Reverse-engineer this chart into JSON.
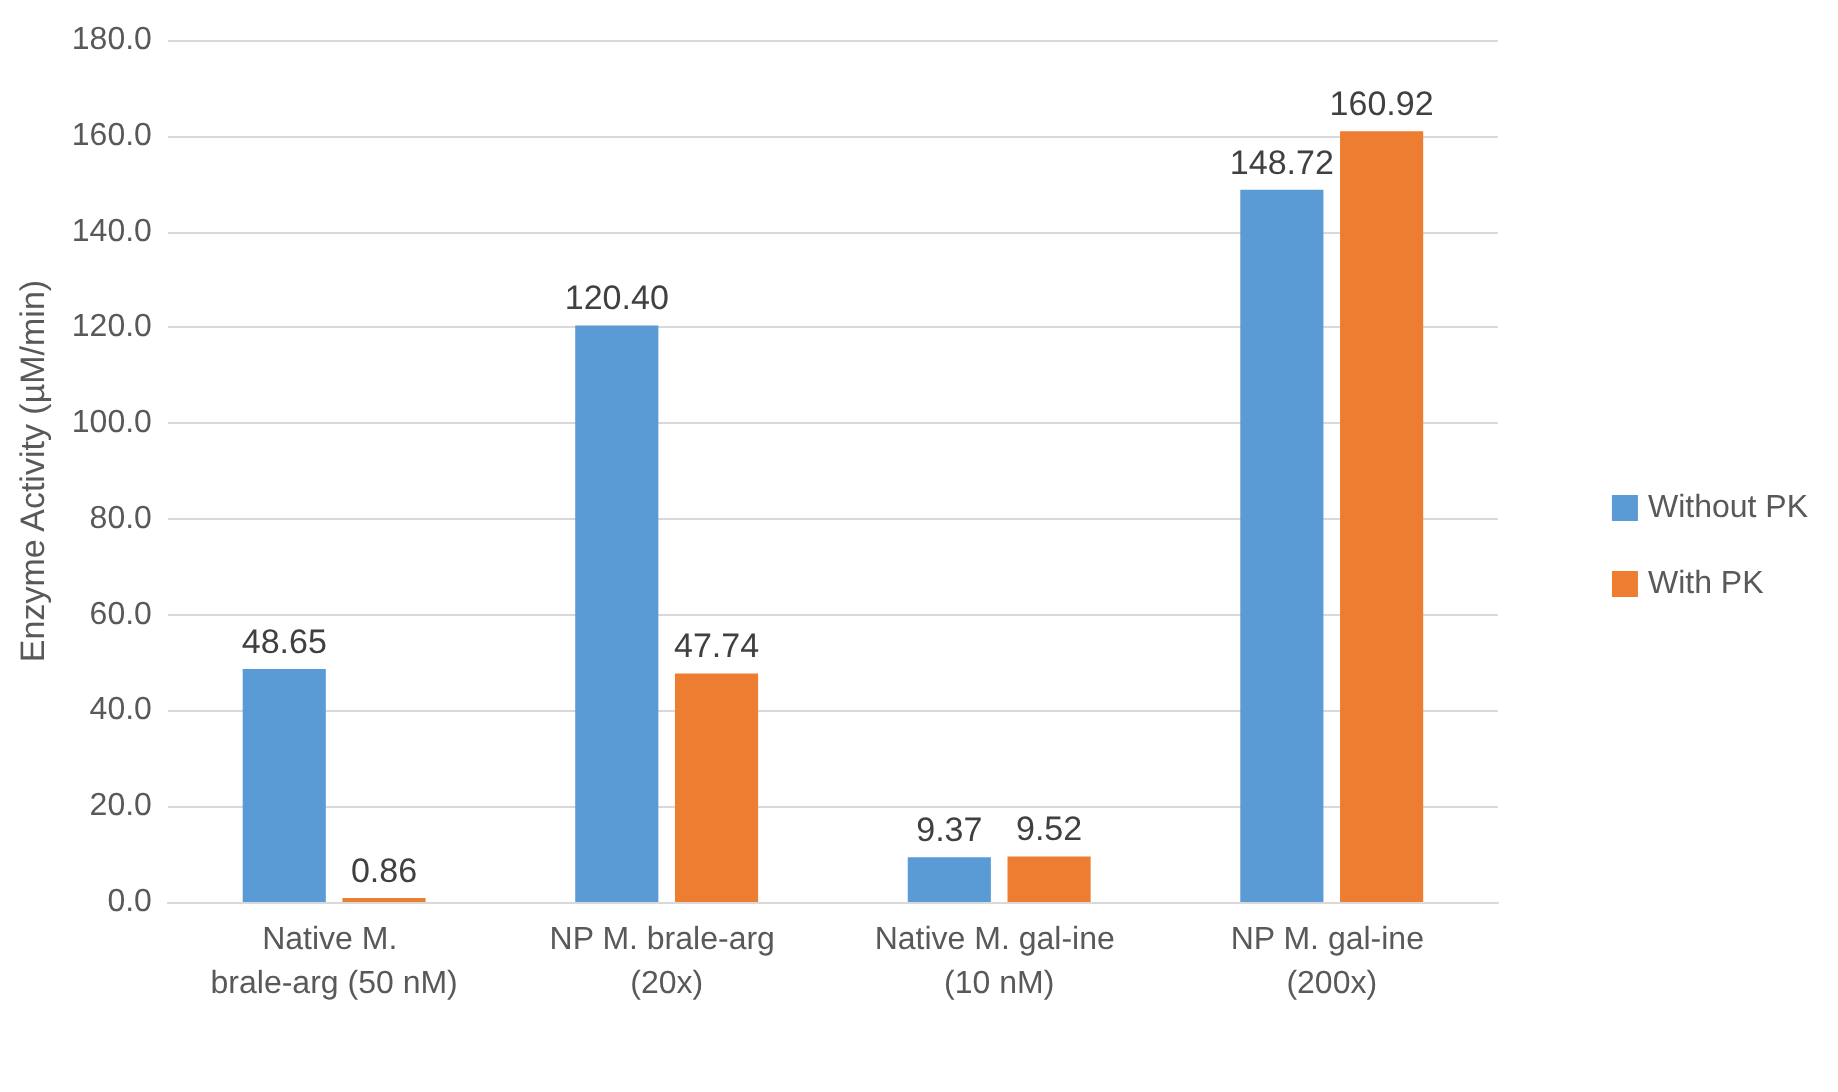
{
  "chart_data": {
    "type": "bar",
    "ylabel": "Enzyme Activity (µM/min)",
    "categories": [
      "Native M. brale-arg (50 nM)",
      "NP M. brale-arg (20x)",
      "Native M. gal-ine (10 nM)",
      "NP M. gal-ine (200x)"
    ],
    "series": [
      {
        "name": "Without PK",
        "color": "#5b9bd5",
        "values": [
          48.65,
          120.4,
          9.37,
          148.72
        ]
      },
      {
        "name": "With PK",
        "color": "#ed7d31",
        "values": [
          0.86,
          47.74,
          9.52,
          160.92
        ]
      }
    ],
    "value_labels": [
      [
        "48.65",
        "120.40",
        "9.37",
        "148.72"
      ],
      [
        "0.86",
        "47.74",
        "9.52",
        "160.92"
      ]
    ],
    "ylim": [
      0,
      180
    ],
    "yticks": [
      {
        "value": 0,
        "label": "0.0"
      },
      {
        "value": 20,
        "label": "20.0"
      },
      {
        "value": 40,
        "label": "40.0"
      },
      {
        "value": 60,
        "label": "60.0"
      },
      {
        "value": 80,
        "label": "80.0"
      },
      {
        "value": 100,
        "label": "100.0"
      },
      {
        "value": 120,
        "label": "120.0"
      },
      {
        "value": 140,
        "label": "140.0"
      },
      {
        "value": 160,
        "label": "160.0"
      },
      {
        "value": 180,
        "label": "180.0"
      }
    ],
    "grid": "y",
    "legend": "right"
  }
}
